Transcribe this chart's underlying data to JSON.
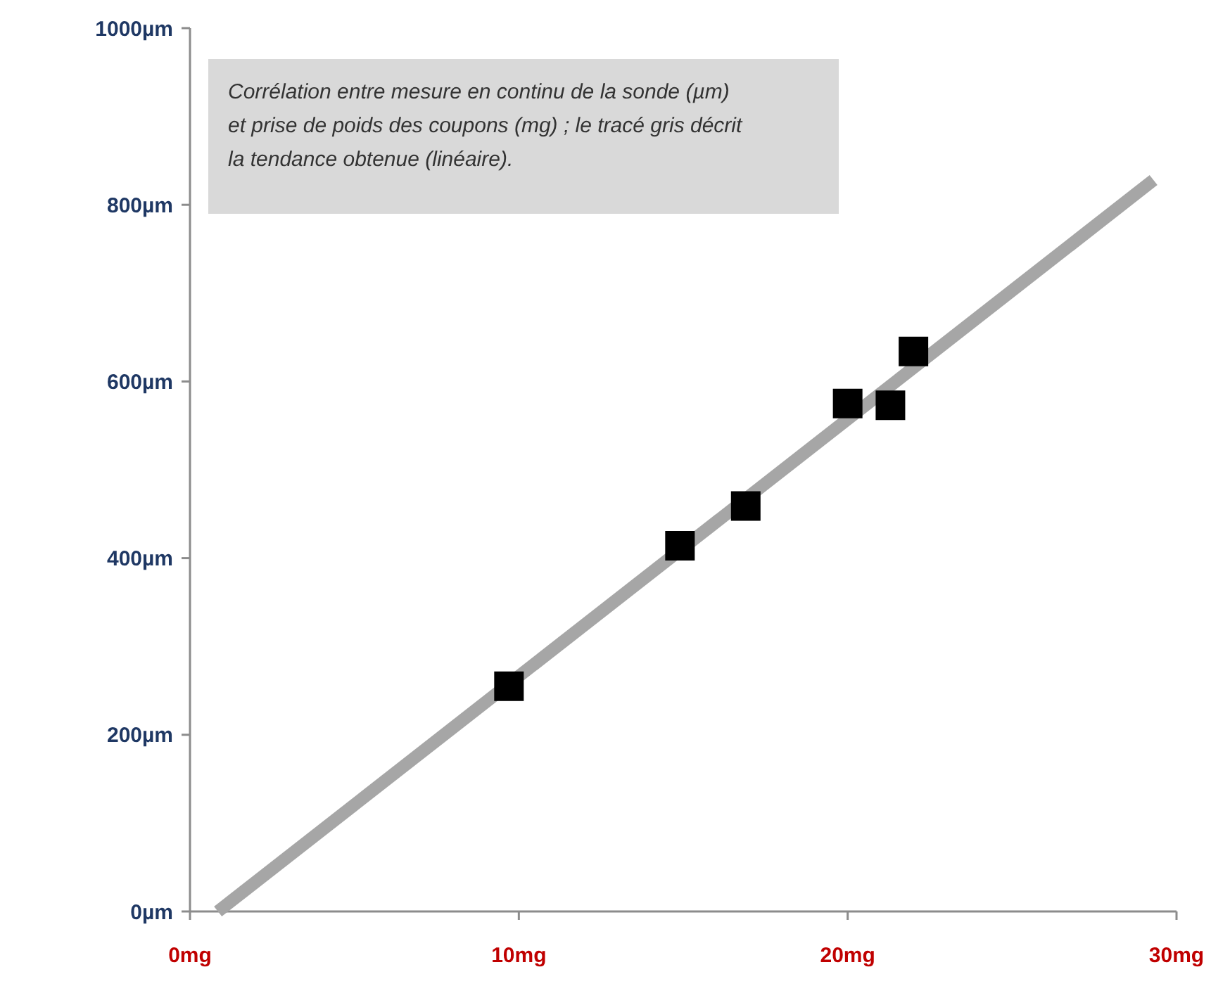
{
  "chart_data": {
    "type": "scatter",
    "annotations": [
      "Corrélation entre mesure en continu de la sonde (µm)\net prise de poids des coupons (mg) ; le tracé gris décrit\nla tendance obtenue (linéaire)."
    ],
    "xlim": [
      0,
      30
    ],
    "xticks": [
      {
        "value": 0,
        "label": "0mg"
      },
      {
        "value": 10,
        "label": "10mg"
      },
      {
        "value": 20,
        "label": "20mg"
      },
      {
        "value": 30,
        "label": "30mg"
      }
    ],
    "ylim": [
      0,
      1000
    ],
    "yticks": [
      {
        "value": 0,
        "label": "0µm"
      },
      {
        "value": 200,
        "label": "200µm"
      },
      {
        "value": 400,
        "label": "400µm"
      },
      {
        "value": 600,
        "label": "600µm"
      },
      {
        "value": 800,
        "label": "800µm"
      },
      {
        "value": 1000,
        "label": "1000µm"
      }
    ],
    "grid": false,
    "line_style": "solid",
    "series": [
      {
        "type": "line",
        "color": "#a6a6a6",
        "x": [
          0.85,
          29.3
        ],
        "values": [
          0,
          828
        ]
      },
      {
        "marker": "square",
        "color": "#000000",
        "x": [
          9.7,
          14.9,
          16.9,
          20.0,
          21.3,
          22.0
        ],
        "values": [
          255,
          414,
          459,
          575,
          573,
          634
        ]
      }
    ]
  }
}
